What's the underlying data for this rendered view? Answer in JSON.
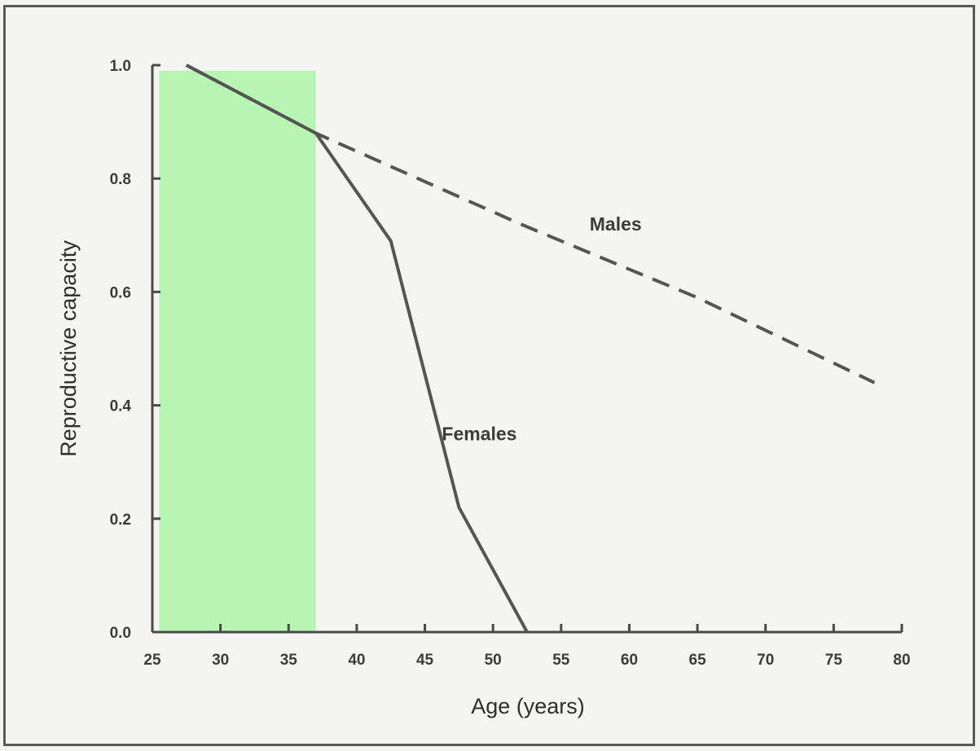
{
  "chart_data": {
    "type": "line",
    "xlabel": "Age (years)",
    "ylabel": "Reproductive capacity",
    "xlim": [
      25,
      80
    ],
    "ylim": [
      0.0,
      1.0
    ],
    "x_ticks": [
      25,
      30,
      35,
      40,
      45,
      50,
      55,
      60,
      65,
      70,
      75,
      80
    ],
    "y_ticks": [
      "0.0",
      "0.2",
      "0.4",
      "0.6",
      "0.8",
      "1.0"
    ],
    "grid": false,
    "highlight": {
      "x_range": [
        25.5,
        37
      ],
      "y_range": [
        0.0,
        0.99
      ],
      "color": "#b8f5b2"
    },
    "series": [
      {
        "name": "Males",
        "style": "dashed",
        "color": "#555555",
        "x": [
          27.5,
          37,
          52,
          65,
          78
        ],
        "y": [
          1.0,
          0.88,
          0.72,
          0.59,
          0.44
        ]
      },
      {
        "name": "Females",
        "style": "solid",
        "color": "#555555",
        "x": [
          27.5,
          37,
          42.5,
          47.5,
          52.5
        ],
        "y": [
          1.0,
          0.88,
          0.69,
          0.22,
          0.0
        ]
      }
    ],
    "series_label_positions": {
      "Males": {
        "x": 59,
        "y": 0.72
      },
      "Females": {
        "x": 49,
        "y": 0.35
      }
    }
  }
}
